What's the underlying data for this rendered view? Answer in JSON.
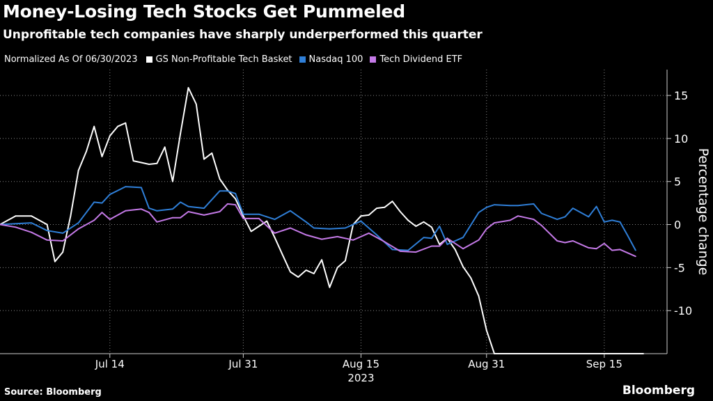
{
  "title": "Money-Losing Tech Stocks Get Pummeled",
  "subtitle": "Unprofitable tech companies have sharply underperformed this quarter",
  "legend_note": "Normalized As Of 06/30/2023",
  "source": "Source: Bloomberg",
  "brand": "Bloomberg",
  "chart_data": {
    "type": "line",
    "title": "Money-Losing Tech Stocks Get Pummeled",
    "subtitle": "Unprofitable tech companies have sharply underperformed this quarter",
    "xlabel": "2023",
    "ylabel": "Percentage change",
    "ylim": [
      -15,
      18
    ],
    "yticks": [
      15,
      10,
      5,
      0,
      -5,
      -10
    ],
    "xticks": [
      {
        "label": "Jul 14",
        "day": 14
      },
      {
        "label": "Jul 31",
        "day": 31
      },
      {
        "label": "Aug 15",
        "day": 46
      },
      {
        "label": "Aug 31",
        "day": 62
      },
      {
        "label": "Sep 15",
        "day": 77
      }
    ],
    "x_unit": "days since 06/30/2023",
    "x_range": [
      0,
      85
    ],
    "legend_position": "top",
    "grid": true,
    "series": [
      {
        "name": "GS Non-Profitable Tech Basket",
        "color": "#ffffff",
        "x": [
          0,
          2,
          4,
          6,
          7,
          8,
          9,
          10,
          11,
          12,
          13,
          14,
          15,
          16,
          17,
          18,
          19,
          20,
          21,
          22,
          23,
          24,
          25,
          26,
          27,
          28,
          29,
          30,
          31,
          32,
          33,
          34,
          35,
          36,
          37,
          38,
          39,
          40,
          41,
          42,
          43,
          44,
          45,
          46,
          47,
          48,
          49,
          50,
          51,
          52,
          53,
          54,
          55,
          56,
          57,
          58,
          59,
          60,
          61,
          62,
          63,
          64,
          65,
          66,
          67,
          68,
          69,
          70,
          71,
          72,
          73,
          74,
          75,
          76,
          77,
          78,
          79,
          80,
          81,
          82,
          83
        ],
        "values": [
          0,
          1,
          1,
          0,
          -4.3,
          -3.2,
          1,
          6.3,
          8.5,
          11.4,
          7.9,
          10.3,
          11.4,
          11.8,
          7.4,
          7.2,
          7,
          7.1,
          9,
          5,
          10.6,
          15.9,
          14,
          7.6,
          8.3,
          5.3,
          4,
          3,
          1,
          -0.8,
          -0.2,
          0.4,
          -1.5,
          -3.5,
          -5.5,
          -6.1,
          -5.3,
          -5.7,
          -4.1,
          -7.3,
          -5,
          -4.2,
          0,
          1,
          1.1,
          1.9,
          2,
          2.7,
          1.5,
          0.5,
          -0.2,
          0.3,
          -0.3,
          -2.3,
          -1.6,
          -2.9,
          -4.9,
          -6.2,
          -8.3,
          -12.3,
          -15,
          -15,
          -15,
          -15,
          -15,
          -15,
          -15,
          -15,
          -15,
          -15,
          -15,
          -15,
          -15,
          -15,
          -15,
          -15,
          -15,
          -15,
          -15,
          -15,
          -15
        ],
        "end_day": 82
      },
      {
        "name": "Nasdaq 100",
        "color": "#2f7fd8",
        "x": [
          0,
          4,
          6,
          8,
          10,
          12,
          13,
          14,
          16,
          18,
          19,
          20,
          22,
          23,
          24,
          26,
          28,
          29,
          30,
          31,
          33,
          35,
          37,
          39,
          40,
          42,
          44,
          46,
          48,
          50,
          52,
          54,
          55,
          56,
          57,
          59,
          61,
          62,
          63,
          65,
          66,
          68,
          69,
          71,
          72,
          73,
          75,
          76,
          77,
          78,
          79,
          80,
          81,
          82
        ],
        "values": [
          0,
          0.2,
          -0.7,
          -1,
          0.2,
          2.6,
          2.5,
          3.5,
          4.4,
          4.3,
          1.9,
          1.6,
          1.8,
          2.6,
          2.1,
          1.9,
          3.9,
          3.9,
          3.6,
          1.2,
          1.2,
          0.6,
          1.6,
          0.3,
          -0.4,
          -0.5,
          -0.4,
          0.4,
          -1.2,
          -2.9,
          -3,
          -1.5,
          -1.6,
          -0.2,
          -2.3,
          -1.5,
          1.4,
          2,
          2.3,
          2.2,
          2.2,
          2.4,
          1.3,
          0.6,
          0.9,
          1.9,
          0.9,
          2.1,
          0.3,
          0.5,
          0.3,
          -1.3,
          -3,
          -3
        ],
        "end_day": 81
      },
      {
        "name": "Tech Dividend ETF",
        "color": "#c57ae8",
        "x": [
          0,
          2,
          4,
          6,
          8,
          10,
          12,
          13,
          14,
          16,
          18,
          19,
          20,
          22,
          23,
          24,
          26,
          28,
          29,
          30,
          31,
          33,
          35,
          37,
          39,
          41,
          43,
          45,
          47,
          49,
          51,
          53,
          55,
          56,
          57,
          59,
          61,
          62,
          63,
          65,
          66,
          68,
          69,
          71,
          72,
          73,
          75,
          76,
          77,
          78,
          79,
          80,
          81
        ],
        "values": [
          0,
          -0.3,
          -0.9,
          -1.8,
          -1.9,
          -0.5,
          0.5,
          1.4,
          0.6,
          1.6,
          1.8,
          1.4,
          0.3,
          0.8,
          0.8,
          1.5,
          1.1,
          1.5,
          2.4,
          2.3,
          0.7,
          0.7,
          -1,
          -0.4,
          -1.2,
          -1.7,
          -1.4,
          -1.8,
          -1,
          -2,
          -3.1,
          -3.2,
          -2.5,
          -2.5,
          -1.6,
          -2.8,
          -1.8,
          -0.5,
          0.2,
          0.5,
          1,
          0.6,
          -0.1,
          -1.9,
          -2.1,
          -1.9,
          -2.7,
          -2.8,
          -2.2,
          -3,
          -2.9,
          -3.3,
          -3.7
        ],
        "end_day": 81
      }
    ]
  }
}
